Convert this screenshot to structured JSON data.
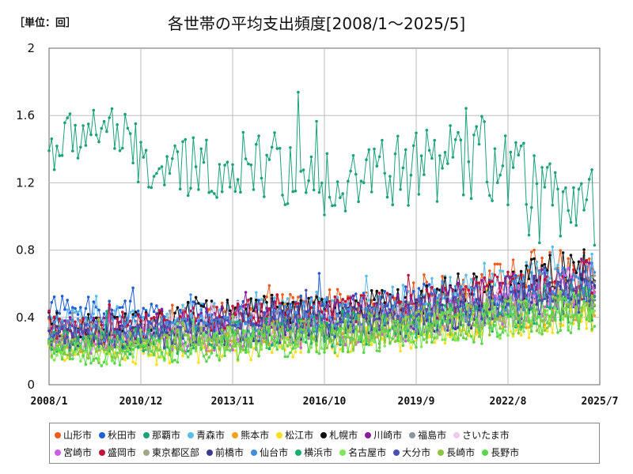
{
  "header": {
    "unit_label": "［単位：回］"
  },
  "chart_data": {
    "type": "line",
    "title": "各世帯の平均支出頻度[2008/1～2025/5]",
    "xlabel": "",
    "ylabel": "",
    "ylim": [
      0,
      2
    ],
    "yticks": [
      "0",
      "0.4",
      "0.8",
      "1.2",
      "1.6",
      "2"
    ],
    "ytick_values": [
      0,
      0.4,
      0.8,
      1.2,
      1.6,
      2
    ],
    "xticks": [
      "2008/1",
      "2010/12",
      "2013/11",
      "2016/10",
      "2019/9",
      "2022/8",
      "2025/7"
    ],
    "x_range": [
      "2008/1",
      "2025/5"
    ],
    "n_points": 209,
    "grid": true,
    "legend_position": "bottom",
    "series": [
      {
        "name": "山形市",
        "color": "#f05a1c",
        "anchors": [
          0.36,
          0.3,
          0.34,
          0.4,
          0.44,
          0.48,
          0.46,
          0.52,
          0.6,
          0.7,
          0.65
        ]
      },
      {
        "name": "秋田市",
        "color": "#1f5fd6",
        "anchors": [
          0.46,
          0.44,
          0.42,
          0.4,
          0.42,
          0.44,
          0.46,
          0.5,
          0.52,
          0.56,
          0.6
        ]
      },
      {
        "name": "那覇市",
        "color": "#1aa37a",
        "anchors": [
          1.4,
          1.55,
          1.25,
          1.3,
          1.3,
          1.22,
          1.25,
          1.3,
          1.35,
          1.1,
          1.0
        ]
      },
      {
        "name": "青森市",
        "color": "#5bbcea",
        "anchors": [
          0.38,
          0.36,
          0.38,
          0.4,
          0.42,
          0.44,
          0.48,
          0.54,
          0.58,
          0.62,
          0.66
        ]
      },
      {
        "name": "熊本市",
        "color": "#f4a21b",
        "anchors": [
          0.28,
          0.25,
          0.26,
          0.28,
          0.3,
          0.32,
          0.34,
          0.38,
          0.42,
          0.46,
          0.5
        ]
      },
      {
        "name": "松江市",
        "color": "#f7e01a",
        "anchors": [
          0.22,
          0.2,
          0.2,
          0.22,
          0.24,
          0.26,
          0.28,
          0.32,
          0.36,
          0.4,
          0.44
        ]
      },
      {
        "name": "札幌市",
        "color": "#111111",
        "anchors": [
          0.36,
          0.34,
          0.38,
          0.42,
          0.44,
          0.46,
          0.46,
          0.52,
          0.58,
          0.64,
          0.7
        ]
      },
      {
        "name": "川崎市",
        "color": "#8a1c9e",
        "anchors": [
          0.34,
          0.32,
          0.34,
          0.38,
          0.4,
          0.42,
          0.44,
          0.48,
          0.54,
          0.6,
          0.66
        ]
      },
      {
        "name": "福島市",
        "color": "#8c959e",
        "anchors": [
          0.3,
          0.28,
          0.3,
          0.32,
          0.34,
          0.36,
          0.38,
          0.42,
          0.46,
          0.5,
          0.54
        ]
      },
      {
        "name": "さいたま市",
        "color": "#f0c9ee",
        "anchors": [
          0.3,
          0.28,
          0.3,
          0.32,
          0.34,
          0.36,
          0.38,
          0.42,
          0.48,
          0.52,
          0.56
        ]
      },
      {
        "name": "宮崎市",
        "color": "#cf5ce8",
        "anchors": [
          0.26,
          0.24,
          0.26,
          0.28,
          0.3,
          0.32,
          0.34,
          0.38,
          0.44,
          0.52,
          0.62
        ]
      },
      {
        "name": "盛岡市",
        "color": "#c4103a",
        "anchors": [
          0.34,
          0.32,
          0.36,
          0.4,
          0.42,
          0.42,
          0.44,
          0.48,
          0.54,
          0.58,
          0.62
        ]
      },
      {
        "name": "東京都区部",
        "color": "#a4a48a",
        "anchors": [
          0.28,
          0.26,
          0.28,
          0.3,
          0.32,
          0.34,
          0.36,
          0.4,
          0.44,
          0.48,
          0.52
        ]
      },
      {
        "name": "前橋市",
        "color": "#3b3a8f",
        "anchors": [
          0.3,
          0.28,
          0.3,
          0.32,
          0.34,
          0.36,
          0.38,
          0.42,
          0.46,
          0.52,
          0.56
        ]
      },
      {
        "name": "仙台市",
        "color": "#3e8ee0",
        "anchors": [
          0.34,
          0.32,
          0.34,
          0.36,
          0.38,
          0.4,
          0.42,
          0.46,
          0.5,
          0.56,
          0.6
        ]
      },
      {
        "name": "横浜市",
        "color": "#17b06a",
        "anchors": [
          0.26,
          0.24,
          0.26,
          0.28,
          0.3,
          0.32,
          0.34,
          0.38,
          0.42,
          0.46,
          0.5
        ]
      },
      {
        "name": "名古屋市",
        "color": "#7ee85a",
        "anchors": [
          0.22,
          0.2,
          0.22,
          0.24,
          0.26,
          0.28,
          0.3,
          0.34,
          0.38,
          0.42,
          0.46
        ]
      },
      {
        "name": "大分市",
        "color": "#4a4fb5",
        "anchors": [
          0.3,
          0.28,
          0.3,
          0.32,
          0.34,
          0.36,
          0.38,
          0.42,
          0.46,
          0.5,
          0.56
        ]
      },
      {
        "name": "長崎市",
        "color": "#8cc63e",
        "anchors": [
          0.24,
          0.22,
          0.24,
          0.26,
          0.28,
          0.3,
          0.32,
          0.36,
          0.4,
          0.44,
          0.48
        ]
      },
      {
        "name": "長野市",
        "color": "#5bd64a",
        "anchors": [
          0.2,
          0.18,
          0.2,
          0.22,
          0.24,
          0.26,
          0.28,
          0.32,
          0.36,
          0.4,
          0.44
        ]
      }
    ]
  },
  "legend": {
    "rows": [
      [
        "山形市",
        "秋田市",
        "那覇市",
        "青森市",
        "熊本市",
        "松江市",
        "札幌市",
        "川崎市",
        "福島市",
        "さいたま市"
      ],
      [
        "宮崎市",
        "盛岡市",
        "東京都区部",
        "前橋市",
        "仙台市",
        "横浜市",
        "名古屋市",
        "大分市",
        "長崎市",
        "長野市"
      ]
    ]
  }
}
